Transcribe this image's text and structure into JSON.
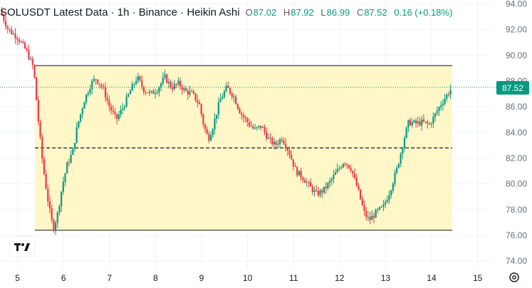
{
  "header": {
    "title": "SOLUSDT Latest Data · 1h · Binance · Heikin Ashi",
    "o_label": "O",
    "o_value": "87.02",
    "h_label": "H",
    "h_value": "87.92",
    "l_label": "L",
    "l_value": "86.99",
    "c_label": "C",
    "c_value": "87.52",
    "change": "0.16 (+0.18%)"
  },
  "last_price_badge": "87.52",
  "colors": {
    "up": "#089981",
    "down": "#f23645",
    "box_fill": "#fff7c7",
    "grid": "#f0f3fa"
  },
  "chart_data": {
    "type": "candlestick",
    "chart_style": "Heikin Ashi",
    "symbol": "SOLUSDT",
    "timeframe": "1h",
    "exchange": "Binance",
    "ylim": [
      73.4,
      94.3
    ],
    "xlim": [
      4.62,
      15.3
    ],
    "y_ticks": [
      74,
      76,
      78,
      80,
      82,
      84,
      86,
      88,
      90,
      92,
      94
    ],
    "y_tick_labels": [
      "74.00",
      "76.00",
      "78.00",
      "80.00",
      "82.00",
      "84.00",
      "86.00",
      "88.00",
      "90.00",
      "92.00",
      "94.00"
    ],
    "x_ticks": [
      5,
      6,
      7,
      8,
      9,
      10,
      11,
      12,
      13,
      14,
      15
    ],
    "x_tick_labels": [
      "5",
      "6",
      "7",
      "8",
      "9",
      "10",
      "11",
      "12",
      "13",
      "14",
      "15"
    ],
    "grid": true,
    "last_price": 87.52,
    "range_box": {
      "x_start": 5.38,
      "x_end": 14.45,
      "top": 89.2,
      "bottom": 76.4,
      "mid": 82.8
    },
    "price_path": [
      [
        4.62,
        93.5
      ],
      [
        4.8,
        92.0
      ],
      [
        5.0,
        91.4
      ],
      [
        5.2,
        90.3
      ],
      [
        5.35,
        89.0
      ],
      [
        5.45,
        85.0
      ],
      [
        5.55,
        81.5
      ],
      [
        5.65,
        79.0
      ],
      [
        5.72,
        77.5
      ],
      [
        5.78,
        76.5
      ],
      [
        5.88,
        77.8
      ],
      [
        5.97,
        79.8
      ],
      [
        6.08,
        81.5
      ],
      [
        6.2,
        82.5
      ],
      [
        6.3,
        84.5
      ],
      [
        6.45,
        86.5
      ],
      [
        6.6,
        87.8
      ],
      [
        6.7,
        88.2
      ],
      [
        6.85,
        87.5
      ],
      [
        7.0,
        86.0
      ],
      [
        7.15,
        85.0
      ],
      [
        7.3,
        86.0
      ],
      [
        7.45,
        87.2
      ],
      [
        7.6,
        88.3
      ],
      [
        7.75,
        87.3
      ],
      [
        7.9,
        87.0
      ],
      [
        8.05,
        87.4
      ],
      [
        8.2,
        88.3
      ],
      [
        8.35,
        87.5
      ],
      [
        8.5,
        87.8
      ],
      [
        8.65,
        87.2
      ],
      [
        8.8,
        87.0
      ],
      [
        8.95,
        86.2
      ],
      [
        9.05,
        84.5
      ],
      [
        9.15,
        83.5
      ],
      [
        9.25,
        84.5
      ],
      [
        9.4,
        86.5
      ],
      [
        9.55,
        87.5
      ],
      [
        9.7,
        86.8
      ],
      [
        9.85,
        85.5
      ],
      [
        10.0,
        84.8
      ],
      [
        10.15,
        84.2
      ],
      [
        10.3,
        84.5
      ],
      [
        10.45,
        83.5
      ],
      [
        10.6,
        83.0
      ],
      [
        10.75,
        83.6
      ],
      [
        10.9,
        82.5
      ],
      [
        11.05,
        81.0
      ],
      [
        11.2,
        80.5
      ],
      [
        11.35,
        79.8
      ],
      [
        11.5,
        79.2
      ],
      [
        11.65,
        79.5
      ],
      [
        11.8,
        80.2
      ],
      [
        11.95,
        81.0
      ],
      [
        12.1,
        81.8
      ],
      [
        12.25,
        81.2
      ],
      [
        12.4,
        79.5
      ],
      [
        12.55,
        77.6
      ],
      [
        12.65,
        77.2
      ],
      [
        12.8,
        77.8
      ],
      [
        12.95,
        78.2
      ],
      [
        13.1,
        79.5
      ],
      [
        13.25,
        81.2
      ],
      [
        13.4,
        83.5
      ],
      [
        13.5,
        84.8
      ],
      [
        13.65,
        84.7
      ],
      [
        13.8,
        84.8
      ],
      [
        13.95,
        84.6
      ],
      [
        14.05,
        85.2
      ],
      [
        14.2,
        86.2
      ],
      [
        14.35,
        87.0
      ],
      [
        14.45,
        87.52
      ]
    ]
  }
}
